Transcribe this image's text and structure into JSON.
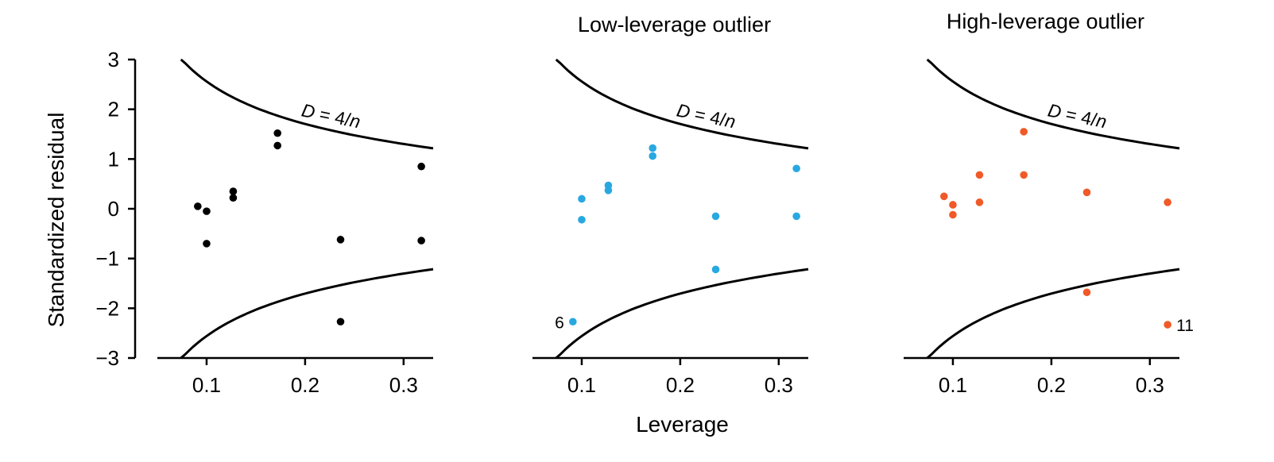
{
  "chart_data": [
    {
      "type": "scatter",
      "title": "",
      "xlabel": "",
      "ylabel": "Standardized residual",
      "xlim": [
        0.05,
        0.33
      ],
      "ylim": [
        -3,
        3
      ],
      "x_ticks": [
        "0.1",
        "0.2",
        "0.3"
      ],
      "y_ticks": [
        "3",
        "2",
        "1",
        "0",
        "−1",
        "−2",
        "−3"
      ],
      "color": "#000000",
      "points": [
        {
          "x": 0.091,
          "y": 0.05
        },
        {
          "x": 0.1,
          "y": -0.05
        },
        {
          "x": 0.1,
          "y": -0.7
        },
        {
          "x": 0.127,
          "y": 0.35
        },
        {
          "x": 0.127,
          "y": 0.22
        },
        {
          "x": 0.172,
          "y": 1.52
        },
        {
          "x": 0.172,
          "y": 1.27
        },
        {
          "x": 0.236,
          "y": -0.62
        },
        {
          "x": 0.236,
          "y": -2.27
        },
        {
          "x": 0.318,
          "y": 0.85
        },
        {
          "x": 0.318,
          "y": -0.64
        }
      ],
      "curve_label": {
        "prefix": "D",
        "suffix": " = 4/",
        "var": "n"
      }
    },
    {
      "type": "scatter",
      "title": "Low-leverage outlier",
      "xlabel": "Leverage",
      "ylabel": "",
      "xlim": [
        0.05,
        0.33
      ],
      "ylim": [
        -3,
        3
      ],
      "x_ticks": [
        "0.1",
        "0.2",
        "0.3"
      ],
      "color": "#29a8e0",
      "points": [
        {
          "x": 0.091,
          "y": -2.27,
          "label": "6"
        },
        {
          "x": 0.1,
          "y": 0.2
        },
        {
          "x": 0.1,
          "y": -0.22
        },
        {
          "x": 0.127,
          "y": 0.47
        },
        {
          "x": 0.127,
          "y": 0.37
        },
        {
          "x": 0.172,
          "y": 1.22
        },
        {
          "x": 0.172,
          "y": 1.06
        },
        {
          "x": 0.236,
          "y": -0.15
        },
        {
          "x": 0.236,
          "y": -1.22
        },
        {
          "x": 0.318,
          "y": 0.81
        },
        {
          "x": 0.318,
          "y": -0.15
        }
      ],
      "curve_label": {
        "prefix": "D",
        "suffix": " = 4/",
        "var": "n"
      }
    },
    {
      "type": "scatter",
      "title": "High-leverage outlier",
      "xlabel": "",
      "ylabel": "",
      "xlim": [
        0.05,
        0.33
      ],
      "ylim": [
        -3,
        3
      ],
      "x_ticks": [
        "0.1",
        "0.2",
        "0.3"
      ],
      "color": "#f05a28",
      "points": [
        {
          "x": 0.091,
          "y": 0.25
        },
        {
          "x": 0.1,
          "y": 0.08
        },
        {
          "x": 0.1,
          "y": -0.12
        },
        {
          "x": 0.127,
          "y": 0.68
        },
        {
          "x": 0.127,
          "y": 0.13
        },
        {
          "x": 0.172,
          "y": 1.55
        },
        {
          "x": 0.172,
          "y": 0.68
        },
        {
          "x": 0.236,
          "y": 0.33
        },
        {
          "x": 0.236,
          "y": -1.68
        },
        {
          "x": 0.318,
          "y": 0.13
        },
        {
          "x": 0.318,
          "y": -2.33,
          "label": "11"
        }
      ],
      "curve_label": {
        "prefix": "D",
        "suffix": " = 4/",
        "var": "n"
      }
    }
  ]
}
